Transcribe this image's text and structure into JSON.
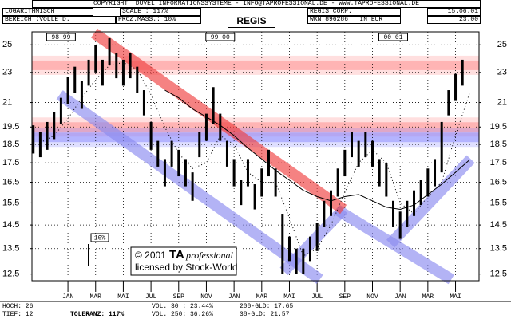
{
  "header": {
    "copyright": "COPYRIGHT  DUVEL INFORMATIONSSYSTEME - INFO@TAPROFESSIONAL.DE - www.TAPROFESSIONAL.DE",
    "scale_mode": "LOGARITHMISCH",
    "scale": "SCALE : 117%",
    "company": "REGIS CORP.",
    "date": "15.06.01",
    "range": "BEREICH :VOLLE D.",
    "percent": "PROZ.MASS.: 10%",
    "wkn": "WKN 896286   IN EUR",
    "last": "23.00"
  },
  "footer": {
    "high": "HOCH: 26",
    "low": "TIEF: 12",
    "vol30": "VOL. 30 : 23.44%",
    "vol250": "VOL. 250: 36.26%",
    "tolerance": "TOLERANZ: 117%",
    "gld200": "200-GLD: 17.65",
    "gld38": "38-GLD: 21.57"
  },
  "watermark": {
    "year": "© 2001",
    "brand": "TA",
    "product": "professional",
    "license": "licensed by Stock-World"
  },
  "chart_data": {
    "type": "hl",
    "title": "REGIS",
    "log": true,
    "grid": true,
    "xlim": [
      -2.6,
      29.7
    ],
    "ylim": [
      12.25,
      26
    ],
    "yticks": [
      25,
      23,
      21,
      19.5,
      18.5,
      17.5,
      16.5,
      15.5,
      14.5,
      13.5,
      12.5
    ],
    "xticks": [
      {
        "value": 0,
        "label": "JAN"
      },
      {
        "value": 2,
        "label": "MAR"
      },
      {
        "value": 4,
        "label": "MAI"
      },
      {
        "value": 6,
        "label": "JUL"
      },
      {
        "value": 8,
        "label": "SEP"
      },
      {
        "value": 10,
        "label": "NOV"
      },
      {
        "value": 12,
        "label": "JAN"
      },
      {
        "value": 14,
        "label": "MAR"
      },
      {
        "value": 16,
        "label": "MAI"
      },
      {
        "value": 18,
        "label": "JUL"
      },
      {
        "value": 20,
        "label": "SEP"
      },
      {
        "value": 22,
        "label": "NOV"
      },
      {
        "value": 24,
        "label": "JAN"
      },
      {
        "value": 26,
        "label": "MAR"
      },
      {
        "value": 28,
        "label": "MAI"
      }
    ],
    "year_marks": [
      {
        "value": -0.5,
        "label": "98 99"
      },
      {
        "value": 11,
        "label": "99 00"
      },
      {
        "value": 23.5,
        "label": "00 01"
      }
    ],
    "scale_marker": "10%",
    "color": "#000000",
    "bars": {
      "x": [
        -2.5,
        -2,
        -1.5,
        -1,
        -0.5,
        0,
        0.5,
        1,
        1.5,
        2,
        2.5,
        3,
        3.5,
        4,
        4.5,
        5,
        5.5,
        6,
        6.5,
        7,
        7.5,
        8,
        8.5,
        9,
        9.5,
        10,
        10.5,
        11,
        11.5,
        12,
        12.5,
        13,
        13.5,
        14,
        14.5,
        15,
        15.5,
        16,
        16.5,
        17,
        17.5,
        18,
        18.5,
        19,
        19.5,
        20,
        20.5,
        21,
        21.5,
        22,
        22.5,
        23,
        23.5,
        24,
        24.5,
        25,
        25.5,
        26,
        26.5,
        27,
        27.5,
        28,
        28.5
      ],
      "low": [
        18.0,
        17.8,
        18.2,
        18.8,
        19.7,
        20.9,
        21.6,
        20.6,
        22.1,
        23.0,
        22.1,
        23.5,
        22.6,
        22.1,
        22.6,
        21.6,
        20.2,
        18.2,
        17.3,
        16.3,
        17.3,
        16.8,
        16.3,
        15.6,
        17.8,
        18.7,
        19.7,
        18.7,
        17.3,
        16.3,
        15.4,
        16.3,
        15.2,
        15.8,
        16.8,
        15.8,
        12.5,
        13.0,
        12.5,
        12.5,
        13.0,
        13.4,
        14.4,
        14.9,
        15.8,
        16.8,
        17.8,
        17.3,
        17.8,
        17.3,
        16.3,
        15.8,
        14.4,
        13.9,
        14.4,
        14.9,
        15.4,
        15.8,
        16.3,
        17.0,
        20.2,
        21.1,
        22.1
      ],
      "high": [
        19.6,
        19.2,
        19.8,
        20.4,
        21.3,
        22.7,
        23.4,
        22.4,
        23.9,
        25.0,
        23.9,
        25.5,
        24.4,
        23.9,
        24.4,
        23.4,
        21.8,
        19.8,
        18.7,
        17.7,
        18.7,
        18.2,
        17.7,
        17.0,
        19.2,
        20.3,
        22.0,
        20.3,
        18.7,
        17.7,
        16.6,
        17.7,
        16.4,
        17.2,
        18.2,
        17.2,
        15.0,
        14.0,
        13.5,
        13.5,
        14.0,
        14.6,
        15.6,
        16.1,
        17.2,
        18.2,
        19.2,
        18.7,
        19.2,
        18.7,
        17.7,
        17.5,
        15.6,
        15.1,
        15.6,
        16.1,
        16.6,
        17.2,
        17.7,
        19.8,
        21.8,
        22.9,
        23.9
      ]
    },
    "averages": [
      {
        "style": "solid",
        "color": "#000000",
        "x": [
          7,
          8,
          9,
          10,
          11,
          12,
          13,
          14,
          15,
          16,
          17,
          18,
          19,
          20,
          21,
          22,
          23,
          24,
          25,
          26,
          27,
          28,
          29
        ],
        "values": [
          21.8,
          21.3,
          20.6,
          20.1,
          19.6,
          19,
          18.3,
          17.7,
          17.1,
          16.6,
          16.1,
          15.8,
          15.6,
          15.8,
          15.9,
          15.6,
          15.3,
          15.2,
          15.4,
          15.9,
          16.4,
          17,
          17.65
        ]
      },
      {
        "style": "dotted",
        "color": "#000000",
        "x": [
          -2,
          -1,
          0,
          1,
          2,
          3,
          4,
          5,
          6,
          7,
          8,
          9,
          10,
          11,
          12,
          13,
          14,
          15,
          16,
          17,
          18,
          19,
          20,
          21,
          22,
          23,
          24,
          25,
          26,
          27,
          28,
          29
        ],
        "values": [
          18.6,
          19,
          20,
          21.3,
          22.5,
          23.5,
          23.7,
          23.2,
          21.5,
          19.5,
          18,
          17.2,
          17.5,
          19,
          18.5,
          17,
          16.5,
          16.5,
          14.8,
          13.2,
          13.5,
          14.5,
          16,
          17.5,
          18.2,
          17.5,
          15.5,
          15,
          15.8,
          16.5,
          19,
          21.57
        ]
      }
    ],
    "zones": [
      {
        "color": "#ff8080",
        "value": 23.5
      },
      {
        "color": "#ff8080",
        "value": 19.5
      },
      {
        "color": "#8080ff",
        "value": 18.9
      }
    ],
    "trends": [
      {
        "color": "#8c8cf0",
        "x": [
          -0.6,
          18.2
        ],
        "y": [
          21.5,
          12.3
        ]
      },
      {
        "color": "#8c8cf0",
        "x": [
          19.4,
          27.7
        ],
        "y": [
          15.2,
          12.3
        ]
      },
      {
        "color": "#8c8cf0",
        "x": [
          15.6,
          19.9
        ],
        "y": [
          12.6,
          15.2
        ]
      },
      {
        "color": "#8c8cf0",
        "x": [
          23.3,
          29.1
        ],
        "y": [
          13.7,
          17.7
        ]
      },
      {
        "color": "#f04040",
        "x": [
          1.9,
          19.9
        ],
        "y": [
          25.9,
          15.2
        ]
      }
    ]
  }
}
